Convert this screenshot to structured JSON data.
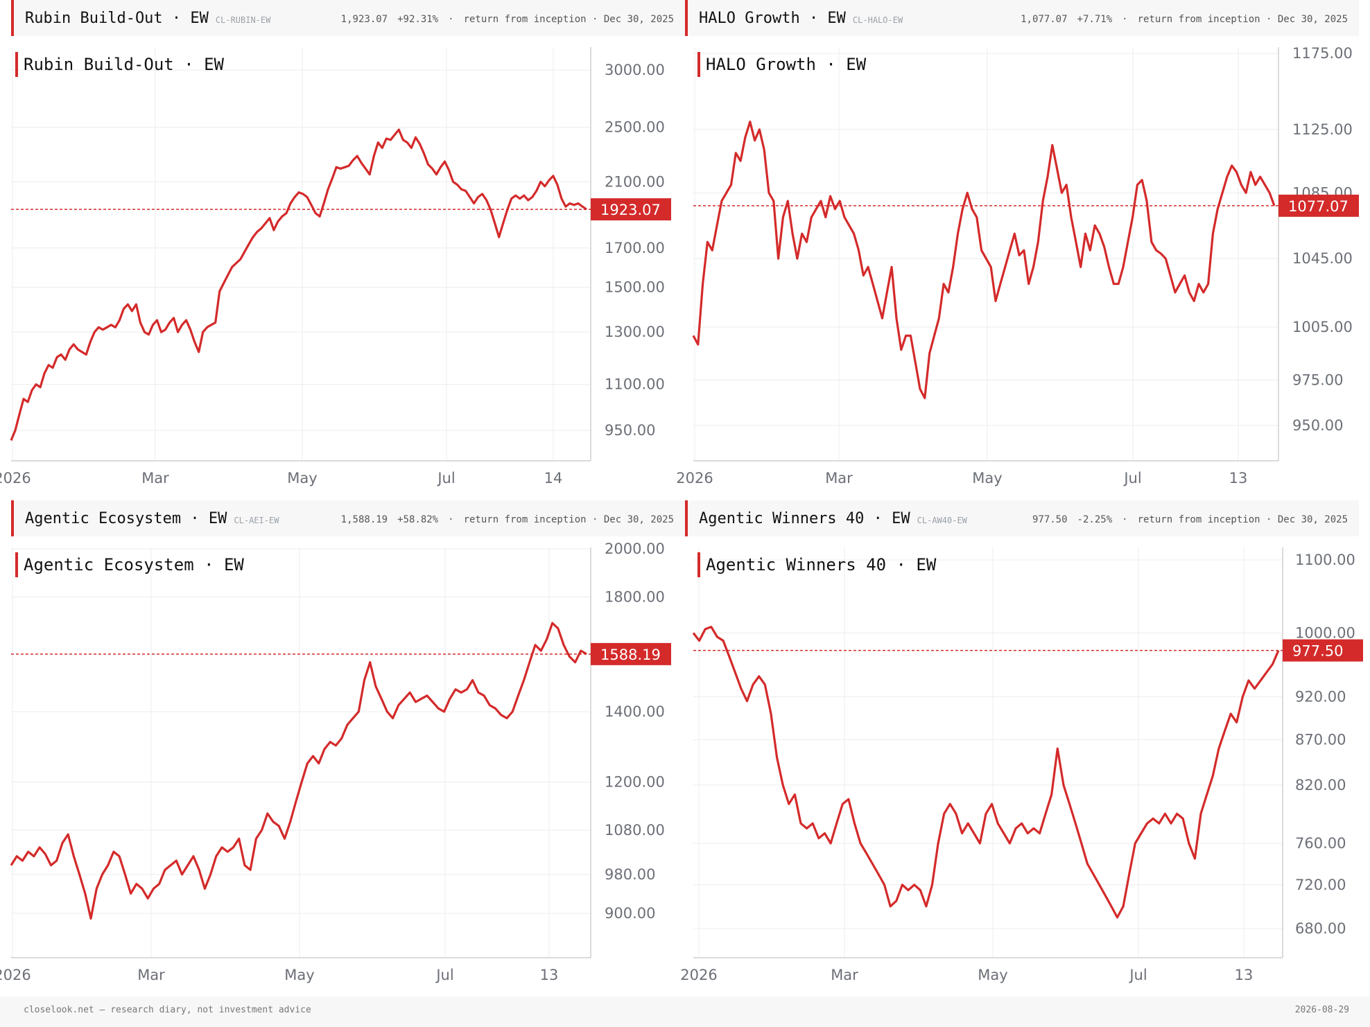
{
  "theme": {
    "accent": "#d42a2a",
    "grid": "#ececec",
    "axis": "#cfcfcf",
    "header_bg": "#f7f7f8"
  },
  "footer": {
    "left": "closelook.net — research diary, not investment advice",
    "right": "2026-08-29"
  },
  "panels": [
    {
      "header": {
        "name": "Rubin Build-Out · EW",
        "code": "CL-RUBIN-EW",
        "value": "1,923.07",
        "change": "+92.31%",
        "sep": "·",
        "note": "return from inception · Dec 30, 2025"
      },
      "chart_data": {
        "type": "line",
        "title": "Rubin Build-Out · EW",
        "scale": "log",
        "y_ticks": [
          3000,
          2500,
          2100,
          1700,
          1500,
          1300,
          1100,
          950
        ],
        "y_tick_labels": [
          "3000.00",
          "2500.00",
          "2100.00",
          "1700.00",
          "1500.00",
          "1300.00",
          "1100.00",
          "950.00"
        ],
        "x_ticks": [
          "2026",
          "Mar",
          "May",
          "Jul",
          "14"
        ],
        "last": 1923.07,
        "last_label": "1923.07",
        "series": [
          {
            "values": [
              920,
              950,
              1000,
              1050,
              1040,
              1080,
              1100,
              1090,
              1140,
              1170,
              1160,
              1200,
              1210,
              1190,
              1230,
              1250,
              1230,
              1220,
              1210,
              1260,
              1300,
              1320,
              1310,
              1320,
              1330,
              1320,
              1350,
              1400,
              1420,
              1390,
              1420,
              1340,
              1300,
              1290,
              1330,
              1350,
              1300,
              1310,
              1340,
              1360,
              1300,
              1330,
              1350,
              1310,
              1260,
              1220,
              1300,
              1320,
              1330,
              1340,
              1480,
              1520,
              1560,
              1600,
              1620,
              1640,
              1680,
              1720,
              1760,
              1790,
              1810,
              1840,
              1870,
              1800,
              1850,
              1880,
              1900,
              1960,
              2000,
              2030,
              2020,
              2000,
              1950,
              1900,
              1880,
              1960,
              2050,
              2120,
              2200,
              2190,
              2200,
              2210,
              2250,
              2280,
              2230,
              2190,
              2150,
              2280,
              2380,
              2340,
              2410,
              2400,
              2440,
              2480,
              2400,
              2380,
              2340,
              2420,
              2370,
              2300,
              2220,
              2190,
              2150,
              2200,
              2240,
              2180,
              2100,
              2080,
              2050,
              2040,
              2000,
              1960,
              2000,
              2020,
              1980,
              1920,
              1840,
              1760,
              1840,
              1920,
              1990,
              2010,
              1990,
              2010,
              1980,
              2000,
              2040,
              2100,
              2070,
              2110,
              2140,
              2080,
              1990,
              1940,
              1960,
              1950,
              1960,
              1940,
              1923.07
            ]
          }
        ]
      }
    },
    {
      "header": {
        "name": "HALO Growth · EW",
        "code": "CL-HALO-EW",
        "value": "1,077.07",
        "change": "+7.71%",
        "sep": "·",
        "note": "return from inception · Dec 30, 2025"
      },
      "chart_data": {
        "type": "line",
        "title": "HALO Growth · EW",
        "scale": "log",
        "y_ticks": [
          1175,
          1125,
          1085,
          1045,
          1005,
          975,
          950
        ],
        "y_tick_labels": [
          "1175.00",
          "1125.00",
          "1085.00",
          "1045.00",
          "1005.00",
          "975.00",
          "950.00"
        ],
        "x_ticks": [
          "2026",
          "Mar",
          "May",
          "Jul",
          "13"
        ],
        "last": 1077.07,
        "last_label": "1077.07",
        "series": [
          {
            "values": [
              1000,
              995,
              1030,
              1055,
              1050,
              1065,
              1080,
              1085,
              1090,
              1110,
              1105,
              1120,
              1130,
              1118,
              1125,
              1112,
              1085,
              1080,
              1045,
              1070,
              1080,
              1060,
              1045,
              1060,
              1055,
              1070,
              1075,
              1080,
              1070,
              1083,
              1075,
              1080,
              1070,
              1065,
              1060,
              1050,
              1035,
              1040,
              1030,
              1020,
              1010,
              1025,
              1040,
              1010,
              992,
              1000,
              1000,
              985,
              970,
              965,
              990,
              1000,
              1010,
              1030,
              1025,
              1040,
              1060,
              1075,
              1085,
              1075,
              1070,
              1050,
              1045,
              1040,
              1020,
              1030,
              1040,
              1050,
              1060,
              1047,
              1050,
              1030,
              1040,
              1055,
              1080,
              1095,
              1115,
              1100,
              1085,
              1090,
              1070,
              1055,
              1040,
              1060,
              1050,
              1065,
              1060,
              1052,
              1040,
              1030,
              1030,
              1040,
              1055,
              1070,
              1090,
              1093,
              1080,
              1055,
              1050,
              1048,
              1045,
              1035,
              1025,
              1030,
              1035,
              1025,
              1020,
              1030,
              1025,
              1030,
              1060,
              1075,
              1085,
              1095,
              1102,
              1098,
              1090,
              1085,
              1098,
              1090,
              1095,
              1090,
              1085,
              1077.07
            ]
          }
        ]
      }
    },
    {
      "header": {
        "name": "Agentic Ecosystem · EW",
        "code": "CL-AEI-EW",
        "value": "1,588.19",
        "change": "+58.82%",
        "sep": "·",
        "note": "return from inception · Dec 30, 2025"
      },
      "chart_data": {
        "type": "line",
        "title": "Agentic Ecosystem · EW",
        "scale": "log",
        "y_ticks": [
          2000,
          1800,
          1400,
          1200,
          1080,
          980,
          900
        ],
        "y_tick_labels": [
          "2000.00",
          "1800.00",
          "1400.00",
          "1200.00",
          "1080.00",
          "980.00",
          "900.00"
        ],
        "x_ticks": [
          "2026",
          "Mar",
          "May",
          "Jul",
          "13"
        ],
        "last": 1588.19,
        "last_label": "1588.19",
        "series": [
          {
            "values": [
              1000,
              1020,
              1010,
              1030,
              1020,
              1040,
              1025,
              1000,
              1010,
              1050,
              1070,
              1020,
              980,
              940,
              890,
              950,
              980,
              1000,
              1030,
              1020,
              980,
              940,
              960,
              950,
              930,
              950,
              960,
              990,
              1000,
              1010,
              980,
              1000,
              1020,
              990,
              950,
              980,
              1020,
              1040,
              1030,
              1040,
              1060,
              1000,
              990,
              1060,
              1080,
              1120,
              1100,
              1090,
              1060,
              1100,
              1150,
              1200,
              1250,
              1270,
              1250,
              1290,
              1310,
              1300,
              1320,
              1360,
              1380,
              1400,
              1500,
              1560,
              1480,
              1440,
              1400,
              1380,
              1420,
              1440,
              1460,
              1430,
              1440,
              1450,
              1430,
              1410,
              1400,
              1440,
              1470,
              1460,
              1470,
              1500,
              1460,
              1450,
              1420,
              1410,
              1390,
              1380,
              1400,
              1450,
              1500,
              1560,
              1620,
              1600,
              1640,
              1700,
              1680,
              1620,
              1580,
              1560,
              1600,
              1588.19
            ]
          }
        ]
      }
    },
    {
      "header": {
        "name": "Agentic Winners 40 · EW",
        "code": "CL-AW40-EW",
        "value": "977.50",
        "change": "-2.25%",
        "sep": "·",
        "note": "return from inception · Dec 30, 2025"
      },
      "chart_data": {
        "type": "line",
        "title": "Agentic Winners 40 · EW",
        "scale": "log",
        "y_ticks": [
          1100,
          1000,
          920,
          870,
          820,
          760,
          720,
          680
        ],
        "y_tick_labels": [
          "1100.00",
          "1000.00",
          "920.00",
          "870.00",
          "820.00",
          "760.00",
          "720.00",
          "680.00"
        ],
        "x_ticks": [
          "2026",
          "Mar",
          "May",
          "Jul",
          "13"
        ],
        "last": 977.5,
        "last_label": "977.50",
        "series": [
          {
            "values": [
              1000,
              990,
              1005,
              1008,
              995,
              990,
              970,
              950,
              930,
              915,
              935,
              945,
              935,
              900,
              850,
              820,
              800,
              810,
              780,
              775,
              780,
              765,
              770,
              760,
              780,
              800,
              805,
              780,
              760,
              750,
              740,
              730,
              720,
              700,
              705,
              720,
              715,
              720,
              715,
              700,
              720,
              760,
              790,
              800,
              790,
              770,
              780,
              770,
              760,
              790,
              800,
              780,
              770,
              760,
              775,
              780,
              770,
              775,
              770,
              790,
              810,
              860,
              820,
              800,
              780,
              760,
              740,
              730,
              720,
              710,
              700,
              690,
              700,
              730,
              760,
              770,
              780,
              785,
              780,
              790,
              780,
              790,
              785,
              760,
              745,
              790,
              810,
              830,
              860,
              880,
              900,
              890,
              920,
              940,
              930,
              940,
              950,
              960,
              977.5
            ]
          }
        ]
      }
    }
  ]
}
